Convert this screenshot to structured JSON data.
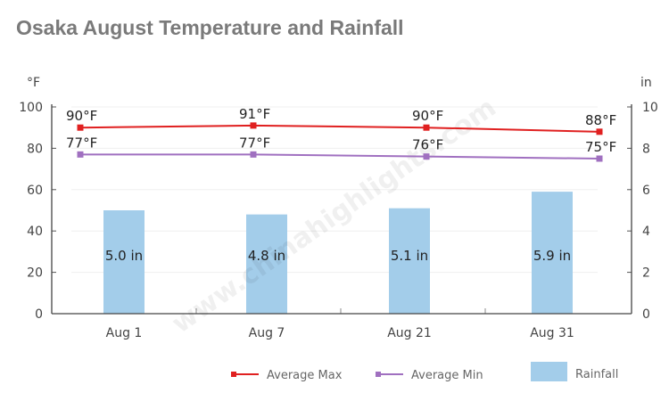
{
  "chart_data": {
    "type": "bar+line",
    "title": "Osaka August Temperature and Rainfall",
    "categories": [
      "Aug 1",
      "Aug 7",
      "Aug 21",
      "Aug 31"
    ],
    "y_left": {
      "unit": "°F",
      "range": [
        0,
        100
      ],
      "ticks": [
        0,
        20,
        40,
        60,
        80,
        100
      ]
    },
    "y_right": {
      "unit": "in",
      "range": [
        0,
        10
      ],
      "ticks": [
        0,
        2,
        4,
        6,
        8,
        10
      ]
    },
    "series": [
      {
        "name": "Average Max",
        "type": "line",
        "axis": "left",
        "color": "#e02020",
        "values": [
          90,
          91,
          90,
          88
        ],
        "labels": [
          "90°F",
          "91°F",
          "90°F",
          "88°F"
        ]
      },
      {
        "name": "Average Min",
        "type": "line",
        "axis": "left",
        "color": "#a070c0",
        "values": [
          77,
          77,
          76,
          75
        ],
        "labels": [
          "77°F",
          "77°F",
          "76°F",
          "75°F"
        ]
      },
      {
        "name": "Rainfall",
        "type": "bar",
        "axis": "right",
        "color": "#a3cdea",
        "values": [
          5.0,
          4.8,
          5.1,
          5.9
        ],
        "labels": [
          "5.0 in",
          "4.8 in",
          "5.1 in",
          "5.9 in"
        ]
      }
    ],
    "grid": true,
    "legend": "bottom",
    "watermark": "www.chinahighlights.com"
  }
}
